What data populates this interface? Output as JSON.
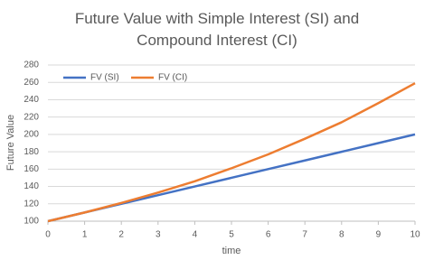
{
  "chart_data": {
    "type": "line",
    "title": "Future Value with Simple Interest (SI) and Compound Interest (CI)",
    "x_label": "time",
    "y_label": "Future Value",
    "x": [
      0,
      1,
      2,
      3,
      4,
      5,
      6,
      7,
      8,
      9,
      10
    ],
    "series": [
      {
        "name": "FV (SI)",
        "color": "#4472c4",
        "values": [
          100,
          110,
          120,
          130,
          140,
          150,
          160,
          170,
          180,
          190,
          200
        ]
      },
      {
        "name": "FV (CI)",
        "color": "#ed7d31",
        "values": [
          100,
          110,
          121,
          133,
          146,
          161,
          177,
          195,
          214,
          236,
          259
        ]
      }
    ],
    "xlim": [
      0,
      10
    ],
    "xticks": [
      0,
      1,
      2,
      3,
      4,
      5,
      6,
      7,
      8,
      9,
      10
    ],
    "ylim": [
      100,
      280
    ],
    "yticks": [
      100,
      120,
      140,
      160,
      180,
      200,
      220,
      240,
      260,
      280
    ],
    "grid": true,
    "legend": "top-left"
  }
}
